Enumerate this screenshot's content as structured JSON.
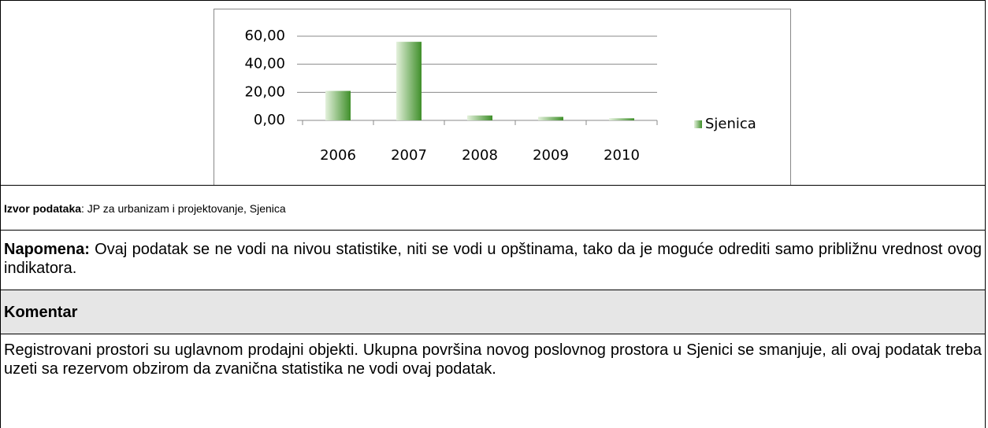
{
  "chart_data": {
    "type": "bar",
    "categories": [
      "2006",
      "2007",
      "2008",
      "2009",
      "2010"
    ],
    "series": [
      {
        "name": "Sjenica",
        "color": "#3f8f2a",
        "values": [
          21,
          56,
          3.5,
          2.5,
          1.5
        ]
      }
    ],
    "ylim": [
      0,
      60
    ],
    "yticks": [
      {
        "value": 0,
        "label": "0,00"
      },
      {
        "value": 20,
        "label": "20,00"
      },
      {
        "value": 40,
        "label": "40,00"
      },
      {
        "value": 60,
        "label": "60,00"
      }
    ],
    "grid": true,
    "legend": "right"
  },
  "source": {
    "label": "Izvor podataka",
    "text": ": JP za urbanizam i projektovanje, Sjenica"
  },
  "note": {
    "label": "Napomena:",
    "text": " Ovaj podatak se ne vodi na nivou statistike, niti se vodi u opštinama, tako da je moguće odrediti samo približnu vrednost ovog indikatora."
  },
  "comment": {
    "title": "Komentar",
    "text": "Registrovani prostori su uglavnom prodajni objekti. Ukupna površina novog poslovnog prostora u Sjenici se smanjuje, ali ovaj podatak treba uzeti sa rezervom obzirom da zvanična statistika ne vodi ovaj podatak."
  }
}
